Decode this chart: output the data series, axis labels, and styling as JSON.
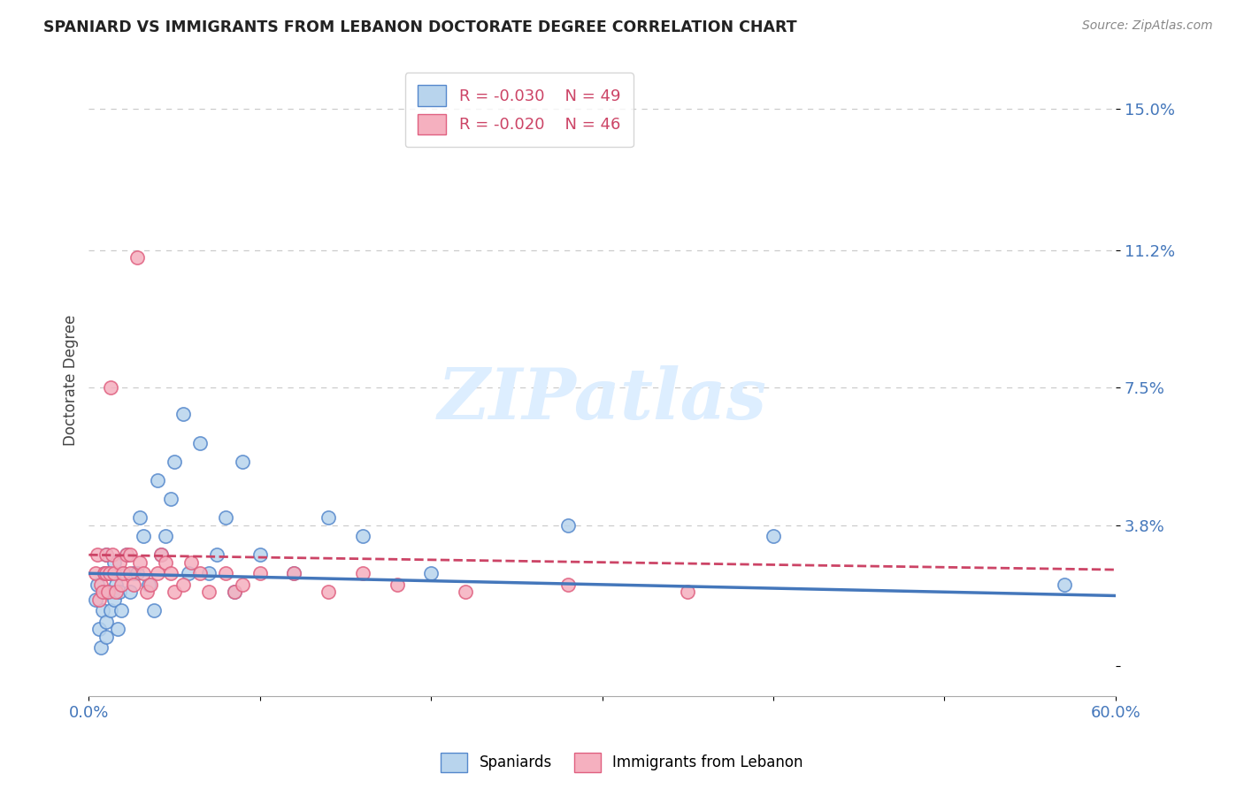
{
  "title": "SPANIARD VS IMMIGRANTS FROM LEBANON DOCTORATE DEGREE CORRELATION CHART",
  "source_text": "Source: ZipAtlas.com",
  "ylabel": "Doctorate Degree",
  "xlim": [
    0.0,
    0.6
  ],
  "ylim": [
    -0.008,
    0.162
  ],
  "yticks": [
    0.0,
    0.038,
    0.075,
    0.112,
    0.15
  ],
  "ytick_labels": [
    "",
    "3.8%",
    "7.5%",
    "11.2%",
    "15.0%"
  ],
  "xtick_positions": [
    0.0,
    0.1,
    0.2,
    0.3,
    0.4,
    0.5,
    0.6
  ],
  "xtick_labels": [
    "0.0%",
    "",
    "",
    "",
    "",
    "",
    "60.0%"
  ],
  "spaniard_R": -0.03,
  "spaniard_N": 49,
  "lebanon_R": -0.02,
  "lebanon_N": 46,
  "spaniard_color": "#b8d4ed",
  "lebanon_color": "#f5b0bf",
  "spaniard_edge_color": "#5588cc",
  "lebanon_edge_color": "#e06080",
  "spaniard_line_color": "#4477bb",
  "lebanon_line_color": "#cc4466",
  "watermark_text": "ZIPatlas",
  "watermark_color": "#ddeeff",
  "title_color": "#222222",
  "axis_label_color": "#444444",
  "tick_color": "#4477bb",
  "grid_color": "#cccccc",
  "spaniard_x": [
    0.004,
    0.005,
    0.006,
    0.007,
    0.008,
    0.009,
    0.01,
    0.01,
    0.01,
    0.01,
    0.012,
    0.013,
    0.014,
    0.015,
    0.015,
    0.016,
    0.017,
    0.018,
    0.019,
    0.02,
    0.022,
    0.024,
    0.026,
    0.028,
    0.03,
    0.032,
    0.035,
    0.038,
    0.04,
    0.042,
    0.045,
    0.048,
    0.05,
    0.055,
    0.058,
    0.065,
    0.07,
    0.075,
    0.08,
    0.085,
    0.09,
    0.1,
    0.12,
    0.14,
    0.16,
    0.2,
    0.28,
    0.4,
    0.57
  ],
  "spaniard_y": [
    0.018,
    0.022,
    0.01,
    0.005,
    0.015,
    0.025,
    0.02,
    0.03,
    0.012,
    0.008,
    0.025,
    0.015,
    0.02,
    0.018,
    0.028,
    0.022,
    0.01,
    0.02,
    0.015,
    0.025,
    0.03,
    0.02,
    0.025,
    0.025,
    0.04,
    0.035,
    0.022,
    0.015,
    0.05,
    0.03,
    0.035,
    0.045,
    0.055,
    0.068,
    0.025,
    0.06,
    0.025,
    0.03,
    0.04,
    0.02,
    0.055,
    0.03,
    0.025,
    0.04,
    0.035,
    0.025,
    0.038,
    0.035,
    0.022
  ],
  "lebanon_x": [
    0.004,
    0.005,
    0.006,
    0.007,
    0.008,
    0.009,
    0.01,
    0.01,
    0.011,
    0.012,
    0.013,
    0.014,
    0.015,
    0.016,
    0.018,
    0.019,
    0.02,
    0.022,
    0.024,
    0.024,
    0.026,
    0.028,
    0.03,
    0.032,
    0.034,
    0.036,
    0.04,
    0.042,
    0.045,
    0.048,
    0.05,
    0.055,
    0.06,
    0.065,
    0.07,
    0.08,
    0.085,
    0.09,
    0.1,
    0.12,
    0.14,
    0.16,
    0.18,
    0.22,
    0.28,
    0.35
  ],
  "lebanon_y": [
    0.025,
    0.03,
    0.018,
    0.022,
    0.02,
    0.025,
    0.03,
    0.025,
    0.02,
    0.025,
    0.075,
    0.03,
    0.025,
    0.02,
    0.028,
    0.022,
    0.025,
    0.03,
    0.025,
    0.03,
    0.022,
    0.11,
    0.028,
    0.025,
    0.02,
    0.022,
    0.025,
    0.03,
    0.028,
    0.025,
    0.02,
    0.022,
    0.028,
    0.025,
    0.02,
    0.025,
    0.02,
    0.022,
    0.025,
    0.025,
    0.02,
    0.025,
    0.022,
    0.02,
    0.022,
    0.02
  ]
}
